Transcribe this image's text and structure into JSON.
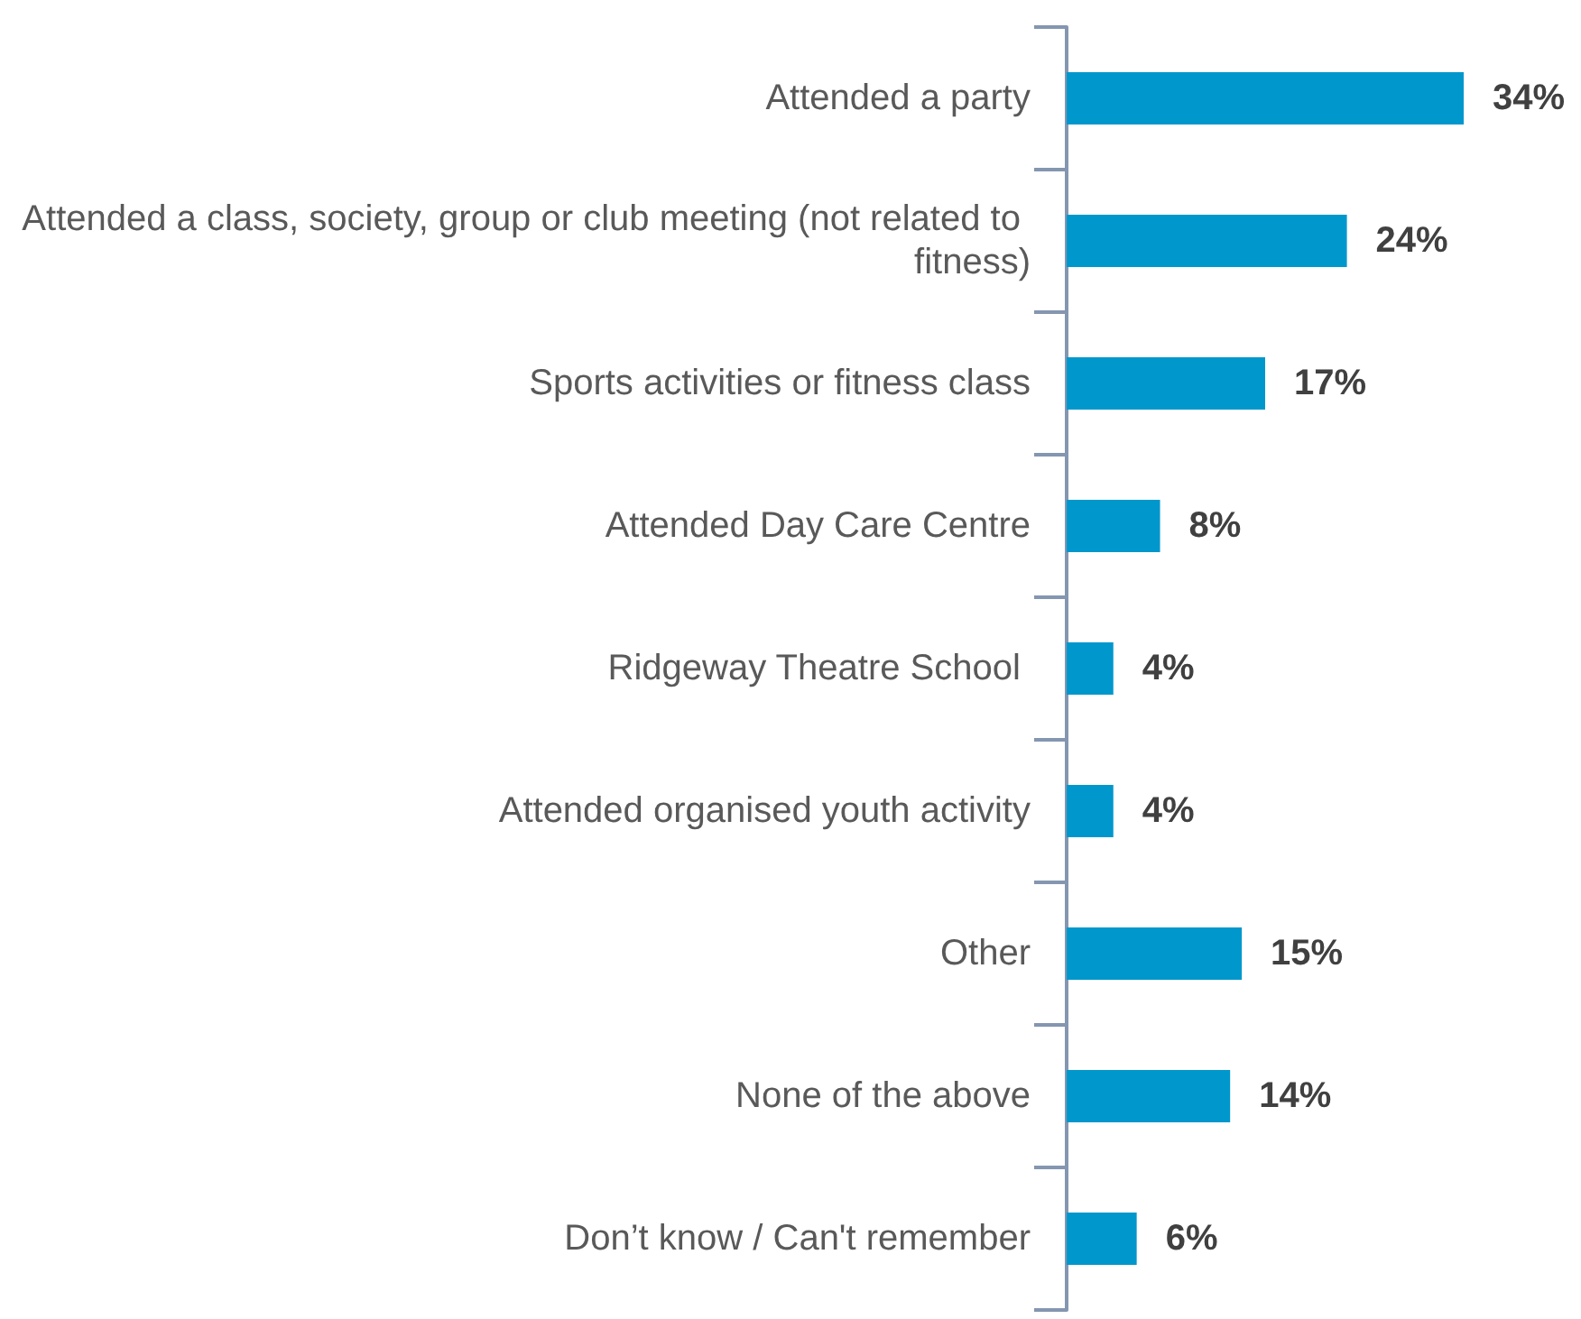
{
  "chart_data": {
    "type": "bar",
    "orientation": "horizontal",
    "categories": [
      "Attended a party",
      "Attended a class, society, group or club meeting (not related to fitness)",
      "Sports activities or fitness class",
      "Attended Day Care Centre",
      "Ridgeway Theatre School ",
      "Attended organised youth activity",
      "Other",
      "None of the above",
      "Don’t know / Can't remember"
    ],
    "values": [
      34,
      24,
      17,
      8,
      4,
      4,
      15,
      14,
      6
    ],
    "value_labels": [
      "34%",
      "24%",
      "17%",
      "8%",
      "4%",
      "4%",
      "15%",
      "14%",
      "6%"
    ],
    "color": "#0097cc"
  }
}
